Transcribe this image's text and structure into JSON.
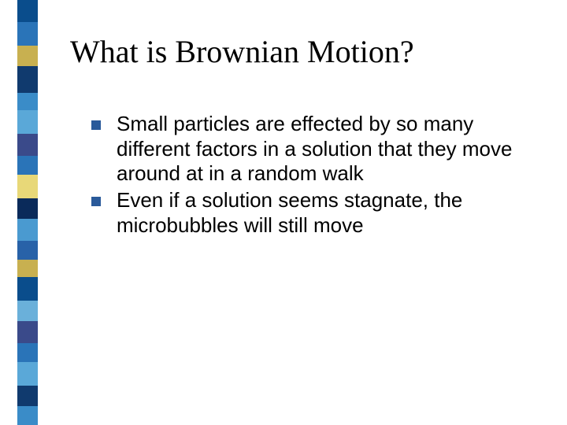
{
  "slide": {
    "title": "What is Brownian Motion?",
    "title_fontsize": 40,
    "title_color": "#000000",
    "title_font": "Times New Roman",
    "bullets": [
      {
        "text": "Small particles are effected by so many different factors in a solution that they move around at in a random walk"
      },
      {
        "text": "Even if a solution seems stagnate, the microbubbles will still move"
      }
    ],
    "bullet_fontsize": 26,
    "bullet_color": "#000000",
    "bullet_font": "Arial",
    "bullet_marker_color": "#2a5a9a",
    "background_color": "#ffffff"
  },
  "decor_strip": {
    "width": 26,
    "segments": [
      {
        "color": "#0a4d8c",
        "height": 28
      },
      {
        "color": "#2a74b8",
        "height": 30
      },
      {
        "color": "#c8b050",
        "height": 26
      },
      {
        "color": "#103a6e",
        "height": 34
      },
      {
        "color": "#3a8cc8",
        "height": 22
      },
      {
        "color": "#5aa8d8",
        "height": 30
      },
      {
        "color": "#3a4a8a",
        "height": 28
      },
      {
        "color": "#2a74b8",
        "height": 24
      },
      {
        "color": "#e8d878",
        "height": 30
      },
      {
        "color": "#0a2a5a",
        "height": 26
      },
      {
        "color": "#4a9ad0",
        "height": 28
      },
      {
        "color": "#2862a8",
        "height": 24
      },
      {
        "color": "#c8b050",
        "height": 22
      },
      {
        "color": "#0a4d8c",
        "height": 30
      },
      {
        "color": "#6ab0da",
        "height": 26
      },
      {
        "color": "#3a4a8a",
        "height": 28
      },
      {
        "color": "#2a74b8",
        "height": 24
      },
      {
        "color": "#5aa8d8",
        "height": 30
      },
      {
        "color": "#103a6e",
        "height": 26
      },
      {
        "color": "#3a8cc8",
        "height": 24
      }
    ]
  }
}
